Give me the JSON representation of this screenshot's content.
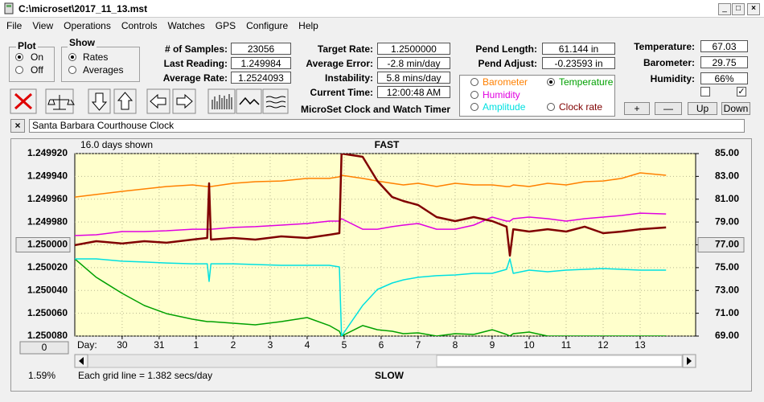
{
  "window": {
    "title": "C:\\microset\\2017_11_13.mst"
  },
  "menu": [
    "File",
    "View",
    "Operations",
    "Controls",
    "Watches",
    "GPS",
    "Configure",
    "Help"
  ],
  "plot_group": {
    "title": "Plot",
    "options": [
      "On",
      "Off"
    ]
  },
  "show_group": {
    "title": "Show",
    "options": [
      "Rates",
      "Averages"
    ]
  },
  "fields": [
    {
      "label": "# of Samples:",
      "value": "23056"
    },
    {
      "label": "Last Reading:",
      "value": "1.249984"
    },
    {
      "label": "Average Rate:",
      "value": "1.2524093"
    },
    {
      "label": "Target Rate:",
      "value": "1.2500000"
    },
    {
      "label": "Average Error:",
      "value": "-2.8 min/day"
    },
    {
      "label": "Instability:",
      "value": "5.8 mins/day"
    },
    {
      "label": "Current Time:",
      "value": "12:00:48 AM"
    },
    {
      "label": "Pend Length:",
      "value": "61.144 in"
    },
    {
      "label": "Pend Adjust:",
      "value": "-0.23593 in"
    },
    {
      "label": "Temperature:",
      "value": "67.03"
    },
    {
      "label": "Barometer:",
      "value": "29.75"
    },
    {
      "label": "Humidity:",
      "value": "66%"
    }
  ],
  "app_name": "MicroSet Clock and Watch Timer",
  "buttons": [
    "+",
    "—",
    "Up",
    "Down"
  ],
  "clock_name": "Santa Barbara Courthouse Clock",
  "chart_data": {
    "type": "line",
    "top_label": "FAST",
    "bottom_label": "SLOW",
    "days_shown": "16.0 days shown",
    "grid_note": "Each grid line = 1.382 secs/day",
    "x_label": "Day:",
    "scroll_percent": "1.59%",
    "offset_button": "0",
    "grid": true,
    "plot_background": "#ffffcc",
    "y_reversed": true,
    "x": [
      -1.28,
      -0.7,
      0,
      0.6,
      1.2,
      1.9,
      2.3,
      2.35,
      2.4,
      3.0,
      3.6,
      4.3,
      5.0,
      5.6,
      5.87,
      5.93,
      6.5,
      6.9,
      7.3,
      7.6,
      8.0,
      8.5,
      9.0,
      9.5,
      10.0,
      10.39,
      10.48,
      10.57,
      11.0,
      11.5,
      12.0,
      12.5,
      13.0,
      13.5,
      14.0,
      14.7
    ],
    "xlim": [
      -1.28,
      15.5
    ],
    "xticks": [
      {
        "value": 0,
        "label": "30"
      },
      {
        "value": 1,
        "label": "31"
      },
      {
        "value": 2,
        "label": "1"
      },
      {
        "value": 3,
        "label": "2"
      },
      {
        "value": 4,
        "label": "3"
      },
      {
        "value": 5,
        "label": "4"
      },
      {
        "value": 6,
        "label": "5"
      },
      {
        "value": 7,
        "label": "6"
      },
      {
        "value": 8,
        "label": "7"
      },
      {
        "value": 9,
        "label": "8"
      },
      {
        "value": 10,
        "label": "9"
      },
      {
        "value": 11,
        "label": "10"
      },
      {
        "value": 12,
        "label": "11"
      },
      {
        "value": 13,
        "label": "12"
      },
      {
        "value": 14,
        "label": "13"
      }
    ],
    "ylim": [
      1.24992,
      1.25008
    ],
    "yticks": [
      {
        "value": 1.24992,
        "label": "1.249920"
      },
      {
        "value": 1.24994,
        "label": "1.249940"
      },
      {
        "value": 1.24996,
        "label": "1.249960"
      },
      {
        "value": 1.24998,
        "label": "1.249980"
      },
      {
        "value": 1.25,
        "label": "1.250000"
      },
      {
        "value": 1.25002,
        "label": "1.250020"
      },
      {
        "value": 1.25004,
        "label": "1.250040"
      },
      {
        "value": 1.25006,
        "label": "1.250060"
      },
      {
        "value": 1.25008,
        "label": "1.250080"
      }
    ],
    "y2lim": [
      69,
      85
    ],
    "y2ticks": [
      {
        "value": 85,
        "label": "85.00"
      },
      {
        "value": 83,
        "label": "83.00"
      },
      {
        "value": 81,
        "label": "81.00"
      },
      {
        "value": 79,
        "label": "79.00"
      },
      {
        "value": 77,
        "label": "77.00"
      },
      {
        "value": 75,
        "label": "75.00"
      },
      {
        "value": 73,
        "label": "73.00"
      },
      {
        "value": 71,
        "label": "71.00"
      },
      {
        "value": 69,
        "label": "69.00"
      }
    ],
    "series": [
      {
        "name": "Barometer",
        "color": "#ff8000",
        "axis": "y2",
        "values": [
          81.19,
          81.41,
          81.69,
          81.9,
          82.11,
          82.25,
          82.11,
          82.11,
          82.11,
          82.39,
          82.53,
          82.6,
          82.82,
          82.82,
          82.96,
          83.1,
          82.82,
          82.6,
          82.39,
          82.25,
          82.39,
          82.11,
          82.39,
          82.25,
          82.25,
          82.11,
          82.11,
          82.25,
          82.11,
          82.39,
          82.25,
          82.53,
          82.6,
          82.82,
          83.31,
          83.1
        ]
      },
      {
        "name": "Temperature",
        "color": "#00a000",
        "axis": "y2",
        "values": [
          75.77,
          74.15,
          72.74,
          71.68,
          70.97,
          70.48,
          70.27,
          70.27,
          70.27,
          70.13,
          69.99,
          70.27,
          70.62,
          69.92,
          69.42,
          69.0,
          69.92,
          69.56,
          69.42,
          69.21,
          69.28,
          69.0,
          69.21,
          69.14,
          69.56,
          69.14,
          69.0,
          69.21,
          69.35,
          69.0,
          69.0,
          69.0,
          69.0,
          69.0,
          69.0,
          69.0
        ]
      },
      {
        "name": "Humidity",
        "color": "#e000e0",
        "axis": "y2",
        "values": [
          77.81,
          77.88,
          78.16,
          78.16,
          78.23,
          78.37,
          78.37,
          78.37,
          78.37,
          78.52,
          78.59,
          78.73,
          78.87,
          79.08,
          79.08,
          79.29,
          78.37,
          78.37,
          78.59,
          78.73,
          78.87,
          78.37,
          78.37,
          78.73,
          79.43,
          79.08,
          79.08,
          79.29,
          79.43,
          79.29,
          79.08,
          79.29,
          79.43,
          79.57,
          79.78,
          79.71
        ]
      },
      {
        "name": "Amplitude",
        "color": "#00e0e0",
        "axis": "y2",
        "values": [
          75.77,
          75.77,
          75.56,
          75.49,
          75.41,
          75.34,
          75.34,
          73.79,
          75.34,
          75.34,
          75.27,
          75.2,
          75.2,
          75.2,
          75.06,
          69.0,
          71.68,
          73.09,
          73.65,
          73.93,
          74.15,
          74.29,
          74.36,
          74.5,
          74.5,
          74.85,
          75.77,
          74.5,
          74.78,
          74.64,
          74.78,
          74.85,
          74.92,
          74.85,
          74.78,
          74.78
        ]
      },
      {
        "name": "Clock rate",
        "color": "#800000",
        "values": [
          1.2500003,
          1.2499968,
          1.2499989,
          1.2499968,
          1.2499982,
          1.2499954,
          1.249994,
          1.2499461,
          1.2499954,
          1.249994,
          1.2499954,
          1.2499926,
          1.249994,
          1.2499912,
          1.2499898,
          1.24992,
          1.2499228,
          1.249944,
          1.2499581,
          1.2499616,
          1.2499651,
          1.2499757,
          1.2499792,
          1.2499757,
          1.2499792,
          1.2499841,
          1.2500095,
          1.2499863,
          1.2499884,
          1.2499863,
          1.2499884,
          1.2499841,
          1.2499898,
          1.2499884,
          1.2499863,
          1.2499848
        ]
      }
    ]
  }
}
